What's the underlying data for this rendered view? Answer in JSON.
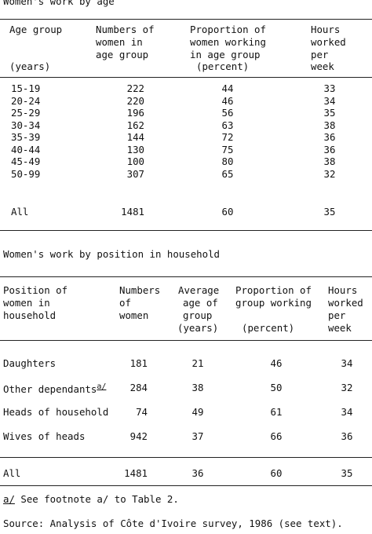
{
  "table1": {
    "title": "Women's work by age",
    "headers": {
      "age_group": "Age group",
      "age_group_unit": "(years)",
      "numbers_l1": "Numbers of",
      "numbers_l2": "women in",
      "numbers_l3": "age group",
      "prop_l1": "Proportion of",
      "prop_l2": "women working",
      "prop_l3": "in age group",
      "prop_l4": "(percent)",
      "hours_l1": "Hours",
      "hours_l2": "worked",
      "hours_l3": "per",
      "hours_l4": "week"
    },
    "rows": [
      {
        "age": "15-19",
        "n": "222",
        "p": "44",
        "h": "33"
      },
      {
        "age": "20-24",
        "n": "220",
        "p": "46",
        "h": "34"
      },
      {
        "age": "25-29",
        "n": "196",
        "p": "56",
        "h": "35"
      },
      {
        "age": "30-34",
        "n": "162",
        "p": "63",
        "h": "38"
      },
      {
        "age": "35-39",
        "n": "144",
        "p": "72",
        "h": "36"
      },
      {
        "age": "40-44",
        "n": "130",
        "p": "75",
        "h": "36"
      },
      {
        "age": "45-49",
        "n": "100",
        "p": "80",
        "h": "38"
      },
      {
        "age": "50-99",
        "n": "307",
        "p": "65",
        "h": "32"
      }
    ],
    "total": {
      "label": "All",
      "n": "1481",
      "p": "60",
      "h": "35"
    }
  },
  "table2": {
    "title": "Women's work by position in household",
    "headers": {
      "pos_l1": "Position of",
      "pos_l2": "women in",
      "pos_l3": "household",
      "num_l1": "Numbers",
      "num_l2": "of",
      "num_l3": "women",
      "avg_l1": "Average",
      "avg_l2": "age of",
      "avg_l3": "group",
      "avg_l4": "(years)",
      "prop_l1": "Proportion of",
      "prop_l2": "group working",
      "prop_l3": "(percent)",
      "hours_l1": "Hours",
      "hours_l2": "worked",
      "hours_l3": "per",
      "hours_l4": "week"
    },
    "rows": [
      {
        "pos": "Daughters",
        "note": "",
        "n": "181",
        "age": "21",
        "p": "46",
        "h": "34"
      },
      {
        "pos": "Other dependants",
        "note": "a/",
        "n": "284",
        "age": "38",
        "p": "50",
        "h": "32"
      },
      {
        "pos": "Heads of household",
        "note": "",
        "n": "74",
        "age": "49",
        "p": "61",
        "h": "34"
      },
      {
        "pos": "Wives of heads",
        "note": "",
        "n": "942",
        "age": "37",
        "p": "66",
        "h": "36"
      }
    ],
    "total": {
      "label": "All",
      "n": "1481",
      "age": "36",
      "p": "60",
      "h": "35"
    }
  },
  "footnote": {
    "marker": "a/",
    "text": " See footnote a/ to Table 2."
  },
  "source": "Source: Analysis of Côte d'Ivoire survey, 1986 (see text)."
}
